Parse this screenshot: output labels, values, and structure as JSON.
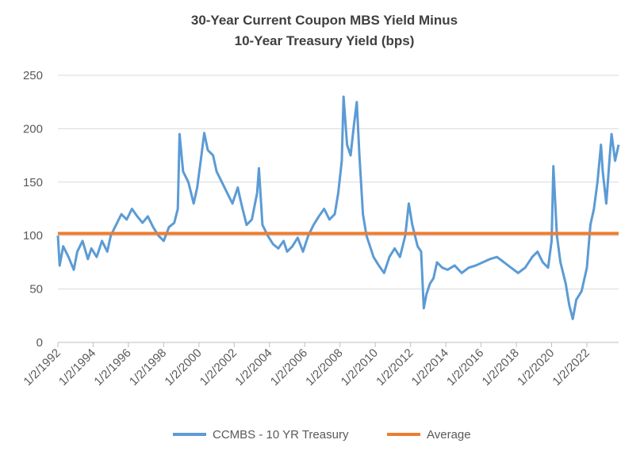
{
  "chart_data": {
    "type": "line",
    "title": [
      "30-Year Current Coupon MBS Yield Minus",
      "10-Year Treasury Yield (bps)"
    ],
    "xlim": [
      1992,
      2023.8
    ],
    "xticks": [
      {
        "value": 1992,
        "label": "1/2/1992"
      },
      {
        "value": 1994,
        "label": "1/2/1994"
      },
      {
        "value": 1996,
        "label": "1/2/1996"
      },
      {
        "value": 1998,
        "label": "1/2/1998"
      },
      {
        "value": 2000,
        "label": "1/2/2000"
      },
      {
        "value": 2002,
        "label": "1/2/2002"
      },
      {
        "value": 2004,
        "label": "1/2/2004"
      },
      {
        "value": 2006,
        "label": "1/2/2006"
      },
      {
        "value": 2008,
        "label": "1/2/2008"
      },
      {
        "value": 2010,
        "label": "1/2/2010"
      },
      {
        "value": 2012,
        "label": "1/2/2012"
      },
      {
        "value": 2014,
        "label": "1/2/2014"
      },
      {
        "value": 2016,
        "label": "1/2/2016"
      },
      {
        "value": 2018,
        "label": "1/2/2018"
      },
      {
        "value": 2020,
        "label": "1/2/2020"
      },
      {
        "value": 2022,
        "label": "1/2/2022"
      }
    ],
    "ylim": [
      0,
      250
    ],
    "yticks": [
      0,
      50,
      100,
      150,
      200,
      250
    ],
    "grid": true,
    "legend": "bottom",
    "series": [
      {
        "name": "CCMBS - 10 YR Treasury",
        "color": "#5b9bd5",
        "x": [
          1992.0,
          1992.1,
          1992.3,
          1992.6,
          1992.9,
          1993.1,
          1993.4,
          1993.7,
          1993.9,
          1994.2,
          1994.5,
          1994.8,
          1995.0,
          1995.3,
          1995.6,
          1995.9,
          1996.2,
          1996.5,
          1996.8,
          1997.1,
          1997.4,
          1997.7,
          1998.0,
          1998.3,
          1998.6,
          1998.8,
          1998.9,
          1999.1,
          1999.4,
          1999.7,
          1999.9,
          2000.1,
          2000.3,
          2000.5,
          2000.8,
          2001.0,
          2001.3,
          2001.6,
          2001.9,
          2002.2,
          2002.4,
          2002.7,
          2003.0,
          2003.3,
          2003.4,
          2003.6,
          2003.9,
          2004.2,
          2004.5,
          2004.8,
          2005.0,
          2005.3,
          2005.6,
          2005.9,
          2006.2,
          2006.5,
          2006.8,
          2007.1,
          2007.4,
          2007.7,
          2007.9,
          2008.1,
          2008.2,
          2008.4,
          2008.6,
          2008.8,
          2008.95,
          2009.1,
          2009.3,
          2009.5,
          2009.7,
          2009.9,
          2010.2,
          2010.5,
          2010.8,
          2011.1,
          2011.4,
          2011.7,
          2011.9,
          2012.1,
          2012.4,
          2012.6,
          2012.75,
          2012.9,
          2013.1,
          2013.3,
          2013.5,
          2013.8,
          2014.1,
          2014.5,
          2014.9,
          2015.3,
          2015.7,
          2016.1,
          2016.5,
          2016.9,
          2017.3,
          2017.7,
          2018.1,
          2018.5,
          2018.9,
          2019.2,
          2019.5,
          2019.8,
          2020.0,
          2020.1,
          2020.3,
          2020.5,
          2020.8,
          2021.0,
          2021.2,
          2021.4,
          2021.7,
          2022.0,
          2022.2,
          2022.4,
          2022.6,
          2022.8,
          2022.9,
          2023.1,
          2023.3,
          2023.4,
          2023.6,
          2023.8
        ],
        "values": [
          100,
          72,
          90,
          80,
          68,
          85,
          95,
          78,
          88,
          80,
          95,
          85,
          100,
          110,
          120,
          115,
          125,
          118,
          112,
          118,
          108,
          100,
          95,
          108,
          112,
          125,
          195,
          160,
          150,
          130,
          145,
          170,
          196,
          180,
          175,
          160,
          150,
          140,
          130,
          145,
          130,
          110,
          115,
          140,
          163,
          110,
          100,
          92,
          88,
          95,
          85,
          90,
          98,
          85,
          100,
          110,
          118,
          125,
          115,
          120,
          140,
          170,
          230,
          185,
          175,
          205,
          225,
          175,
          120,
          100,
          90,
          80,
          72,
          65,
          80,
          88,
          80,
          100,
          130,
          110,
          90,
          85,
          32,
          45,
          55,
          60,
          75,
          70,
          68,
          72,
          65,
          70,
          72,
          75,
          78,
          80,
          75,
          70,
          65,
          70,
          80,
          85,
          75,
          70,
          95,
          165,
          100,
          75,
          55,
          35,
          22,
          40,
          48,
          70,
          110,
          125,
          150,
          185,
          160,
          130,
          175,
          195,
          170,
          185
        ]
      },
      {
        "name": "Average",
        "color": "#ed7d31",
        "x": [
          1992,
          2023.8
        ],
        "values": [
          102,
          102
        ]
      }
    ]
  }
}
